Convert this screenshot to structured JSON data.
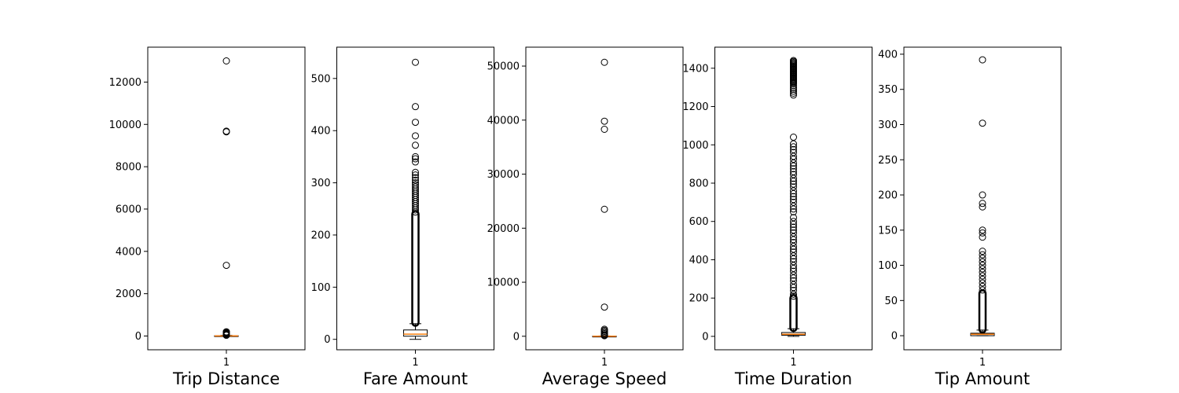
{
  "chart_data": [
    {
      "type": "box",
      "xlabel": "Trip Distance",
      "category": "1",
      "ylim": [
        -650,
        13650
      ],
      "yticks": [
        0,
        2000,
        4000,
        6000,
        8000,
        10000,
        12000
      ],
      "box": {
        "q1": 2,
        "median": 5,
        "q3": 12,
        "whisker_low": 0,
        "whisker_high": 30
      },
      "outliers": [
        13000,
        9680,
        9650,
        3340,
        200,
        180,
        160,
        140,
        120,
        100,
        90,
        80,
        70,
        60,
        50,
        40,
        35
      ]
    },
    {
      "type": "box",
      "xlabel": "Fare Amount",
      "category": "1",
      "ylim": [
        -20,
        560
      ],
      "yticks": [
        0,
        100,
        200,
        300,
        400,
        500
      ],
      "box": {
        "q1": 6,
        "median": 10,
        "q3": 18,
        "whisker_low": 0,
        "whisker_high": 30
      },
      "outlier_band": [
        32,
        240
      ],
      "outliers": [
        531,
        446,
        416,
        390,
        372,
        350,
        346,
        340,
        320,
        315,
        310,
        305,
        300,
        296,
        292,
        288,
        284,
        280,
        276,
        272,
        268,
        264,
        260,
        256,
        252,
        248,
        244
      ]
    },
    {
      "type": "box",
      "xlabel": "Average Speed",
      "category": "1",
      "ylim": [
        -2500,
        53500
      ],
      "yticks": [
        0,
        10000,
        20000,
        30000,
        40000,
        50000
      ],
      "box": {
        "q1": 5,
        "median": 10,
        "q3": 20,
        "whisker_low": 0,
        "whisker_high": 60
      },
      "outliers": [
        50700,
        39800,
        38300,
        23500,
        5400,
        1300,
        1100,
        900,
        700,
        500,
        300,
        200,
        150,
        100
      ]
    },
    {
      "type": "box",
      "xlabel": "Time Duration",
      "category": "1",
      "ylim": [
        -70,
        1510
      ],
      "yticks": [
        0,
        200,
        400,
        600,
        800,
        1000,
        1200,
        1400
      ],
      "box": {
        "q1": 6,
        "median": 11,
        "q3": 20,
        "whisker_low": 0,
        "whisker_high": 40
      },
      "outlier_band": [
        44,
        200
      ],
      "outliers": [
        1440,
        1435,
        1430,
        1425,
        1420,
        1415,
        1410,
        1405,
        1400,
        1395,
        1390,
        1385,
        1380,
        1375,
        1370,
        1365,
        1360,
        1355,
        1350,
        1345,
        1340,
        1335,
        1330,
        1325,
        1320,
        1310,
        1300,
        1290,
        1280,
        1270,
        1260,
        1040,
        1005,
        990,
        975,
        960,
        940,
        925,
        905,
        890,
        875,
        860,
        845,
        825,
        810,
        795,
        780,
        760,
        745,
        730,
        715,
        700,
        680,
        665,
        650,
        620,
        600,
        585,
        570,
        555,
        540,
        520,
        505,
        490,
        470,
        455,
        440,
        420,
        405,
        390,
        370,
        355,
        340,
        320,
        305,
        290,
        270,
        255,
        240,
        220,
        210
      ]
    },
    {
      "type": "box",
      "xlabel": "Tip Amount",
      "category": "1",
      "ylim": [
        -20,
        410
      ],
      "yticks": [
        0,
        50,
        100,
        150,
        200,
        250,
        300,
        350,
        400
      ],
      "box": {
        "q1": 0,
        "median": 2,
        "q3": 3.5,
        "whisker_low": 0,
        "whisker_high": 8
      },
      "outlier_band": [
        9,
        60
      ],
      "outliers": [
        392,
        302,
        200,
        188,
        183,
        150,
        146,
        140,
        120,
        115,
        110,
        105,
        100,
        95,
        90,
        85,
        80,
        75,
        70,
        65
      ]
    }
  ]
}
